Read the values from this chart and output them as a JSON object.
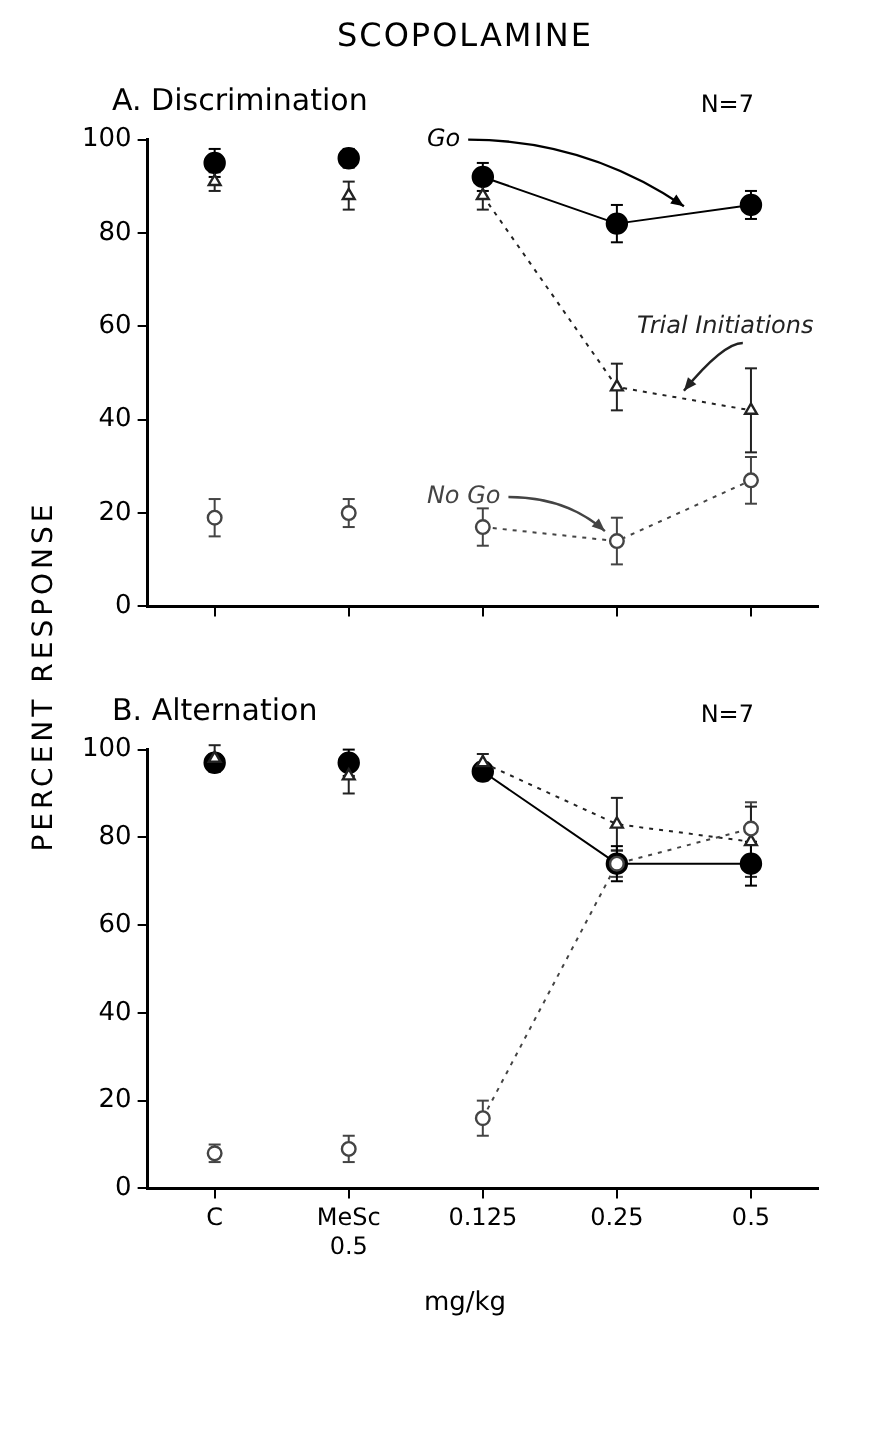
{
  "chart_data": [
    {
      "type": "line",
      "title": "SCOPOLAMINE",
      "subtitle": "A.  Discrimination",
      "ylabel": "PERCENT RESPONSE",
      "annotations": [
        "N=7"
      ],
      "categories": [
        null,
        null,
        null,
        null,
        null
      ],
      "ylim": [
        0,
        100
      ],
      "yticks": [
        0,
        20,
        40,
        60,
        80,
        100
      ],
      "tick_labels": "y",
      "legend": false,
      "grid": false,
      "series": [
        {
          "name": "Go",
          "type": "line",
          "color": "#000000",
          "marker": "circle",
          "line_style": "solid",
          "values": [
            null,
            null,
            92,
            82,
            86
          ],
          "errors": [
            null,
            null,
            3,
            4,
            3
          ]
        },
        {
          "name": "Trial Initiations",
          "type": "line",
          "color": "#222222",
          "marker": "triangle",
          "line_style": "dotted",
          "values": [
            null,
            null,
            88,
            47,
            42
          ],
          "errors": [
            null,
            null,
            3,
            5,
            9
          ]
        },
        {
          "name": "No Go",
          "type": "line",
          "color": "#444444",
          "marker": "circle",
          "line_style": "dotted",
          "values": [
            null,
            null,
            17,
            14,
            27
          ],
          "errors": [
            null,
            null,
            4,
            5,
            5
          ]
        },
        {
          "type": "scatter",
          "color": "#000000",
          "marker": "circle",
          "line_style": "solid",
          "values": [
            95,
            96,
            null,
            null,
            null
          ],
          "errors": [
            3,
            2,
            null,
            null,
            null
          ]
        },
        {
          "type": "scatter",
          "color": "#222222",
          "marker": "triangle",
          "line_style": "dotted",
          "values": [
            91,
            88,
            null,
            null,
            null
          ],
          "errors": [
            2,
            3,
            null,
            null,
            null
          ]
        },
        {
          "type": "scatter",
          "color": "#444444",
          "marker": "circle",
          "line_style": "dotted",
          "values": [
            19,
            20,
            null,
            null,
            null
          ],
          "errors": [
            4,
            3,
            null,
            null,
            null
          ]
        }
      ]
    },
    {
      "type": "line",
      "subtitle": "B.  Alternation",
      "xlabel": "mg/kg",
      "annotations": [
        "N=7"
      ],
      "categories": [
        "C",
        "MeSc 0.5",
        "0.125",
        "0.25",
        "0.5"
      ],
      "ylim": [
        0,
        100
      ],
      "yticks": [
        0,
        20,
        40,
        60,
        80,
        100
      ],
      "legend": false,
      "grid": false,
      "series": [
        {
          "type": "line",
          "color": "#000000",
          "marker": "circle",
          "line_style": "solid",
          "values": [
            null,
            null,
            95,
            74,
            74
          ],
          "errors": [
            null,
            null,
            2,
            4,
            5
          ]
        },
        {
          "type": "line",
          "color": "#222222",
          "marker": "triangle",
          "line_style": "dotted",
          "values": [
            null,
            null,
            97,
            83,
            79
          ],
          "errors": [
            null,
            null,
            2,
            6,
            8
          ]
        },
        {
          "type": "line",
          "color": "#444444",
          "marker": "circle",
          "line_style": "dotted",
          "values": [
            null,
            null,
            16,
            74,
            82
          ],
          "errors": [
            null,
            null,
            4,
            3,
            6
          ]
        },
        {
          "type": "scatter",
          "color": "#000000",
          "marker": "circle",
          "line_style": "solid",
          "values": [
            97,
            97,
            null,
            null,
            null
          ],
          "errors": [
            2,
            3,
            null,
            null,
            null
          ]
        },
        {
          "type": "scatter",
          "color": "#222222",
          "marker": "triangle",
          "line_style": "dotted",
          "values": [
            98,
            94,
            null,
            null,
            null
          ],
          "errors": [
            3,
            4,
            null,
            null,
            null
          ]
        },
        {
          "type": "scatter",
          "color": "#444444",
          "marker": "circle",
          "line_style": "dotted",
          "values": [
            8,
            9,
            null,
            null,
            null
          ],
          "errors": [
            2,
            3,
            null,
            null,
            null
          ]
        }
      ]
    }
  ]
}
